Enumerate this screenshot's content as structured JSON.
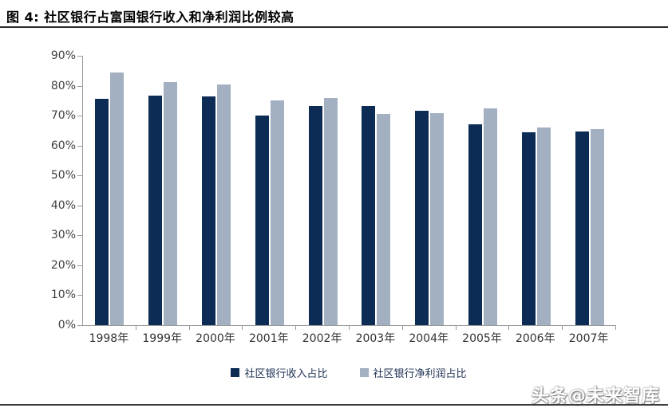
{
  "header": {
    "title": "图 4:  社区银行占富国银行收入和净利润比例较高"
  },
  "watermark": "头条@未来智库",
  "chart_data": {
    "type": "bar",
    "title": "社区银行占富国银行收入和净利润比例较高",
    "categories": [
      "1998年",
      "1999年",
      "2000年",
      "2001年",
      "2002年",
      "2003年",
      "2004年",
      "2005年",
      "2006年",
      "2007年"
    ],
    "series": [
      {
        "key": "revenue-share",
        "name": "社区银行收入占比",
        "color": "#0c2b55",
        "values": [
          75.5,
          76.8,
          76.4,
          70.0,
          73.3,
          73.3,
          71.6,
          67.0,
          64.4,
          64.7
        ]
      },
      {
        "key": "net-profit-share",
        "name": "社区银行净利润占比",
        "color": "#a2b0c1",
        "values": [
          84.5,
          81.1,
          80.3,
          75.0,
          75.9,
          70.5,
          70.9,
          72.3,
          66.1,
          65.6
        ]
      }
    ],
    "xlabel": "",
    "ylabel": "",
    "ylim": [
      0,
      90
    ],
    "ytick_step": 10,
    "ytick_labels": [
      "0%",
      "10%",
      "20%",
      "30%",
      "40%",
      "50%",
      "60%",
      "70%",
      "80%",
      "90%"
    ],
    "grid": false,
    "legend_position": "bottom",
    "axis_color": "#9a9a9a"
  }
}
